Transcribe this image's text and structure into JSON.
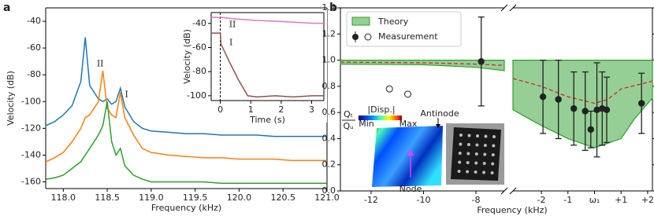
{
  "chart_data": [
    {
      "type": "line",
      "label": "a",
      "xlabel": "Frequency (kHz)",
      "ylabel": "Velocity (dB)",
      "x": [
        117.8,
        117.9,
        118.0,
        118.1,
        118.2,
        118.25,
        118.3,
        118.4,
        118.45,
        118.5,
        118.55,
        118.6,
        118.65,
        118.7,
        118.8,
        118.9,
        119.0,
        119.2,
        119.4,
        119.6,
        119.8,
        120.0,
        120.2,
        120.4,
        120.6,
        120.8,
        121.0
      ],
      "xlim": [
        117.8,
        121.0
      ],
      "xticks": [
        {
          "value": 118,
          "label": "118.0"
        },
        118.5,
        {
          "value": 119,
          "label": "119.0"
        },
        119.5,
        {
          "value": 120,
          "label": "120.0"
        },
        120.5,
        {
          "value": 121,
          "label": "121.0"
        }
      ],
      "ylim": [
        -165,
        -30
      ],
      "yticks": [
        -160,
        -140,
        -120,
        -100,
        -80,
        -60,
        -40
      ],
      "series": [
        {
          "color": "#1f77b4",
          "values": [
            -118,
            -115,
            -110,
            -103,
            -85,
            -52,
            -88,
            -98,
            -100,
            -98,
            -102,
            -100,
            -90,
            -104,
            -115,
            -120,
            -122,
            -123,
            -124,
            -124,
            -125,
            -125,
            -125,
            -126,
            -126,
            -126,
            -126
          ]
        },
        {
          "color": "#ff7f0e",
          "values": [
            -145,
            -142,
            -138,
            -130,
            -120,
            -112,
            -110,
            -100,
            -77,
            -105,
            -110,
            -112,
            -93,
            -112,
            -125,
            -135,
            -138,
            -140,
            -141,
            -142,
            -142,
            -143,
            -143,
            -143,
            -144,
            -144,
            -144
          ]
        },
        {
          "color": "#2ca02c",
          "values": [
            -158,
            -157,
            -155,
            -150,
            -145,
            -140,
            -135,
            -125,
            -118,
            -100,
            -130,
            -140,
            -135,
            -148,
            -155,
            -158,
            -160,
            -160,
            -160,
            -160,
            -161,
            -161,
            -161,
            -161,
            -161,
            -161,
            -161
          ]
        }
      ],
      "annotations": [
        {
          "text": "II",
          "x": 118.42,
          "y": -72
        },
        {
          "text": "I",
          "x": 118.72,
          "y": -95
        }
      ]
    },
    {
      "type": "line",
      "xlabel": "Time (s)",
      "ylabel": "Velocity (dB)",
      "x": [
        -0.3,
        0,
        0.02,
        0.3,
        0.6,
        0.9,
        1.2,
        1.8,
        2.4,
        3.0,
        3.4
      ],
      "xlim": [
        -0.3,
        3.4
      ],
      "xticks": [
        0,
        1,
        2,
        3
      ],
      "ylim": [
        -104,
        -31
      ],
      "yticks": [
        -100,
        -80,
        -60,
        -40
      ],
      "vline": 0,
      "series": [
        {
          "color": "#e377c2",
          "values": [
            -35,
            -35,
            -35,
            -35.8,
            -36.5,
            -37,
            -37.5,
            -38.2,
            -39,
            -39.8,
            -40
          ]
        },
        {
          "color": "#8c564b",
          "values": [
            -48,
            -48,
            -57,
            -72,
            -87,
            -100,
            -101,
            -100,
            -101,
            -100,
            -100
          ]
        }
      ],
      "annotations": [
        {
          "text": "II",
          "x": 0.4,
          "y": -41
        },
        {
          "text": "I",
          "x": 0.35,
          "y": -56
        }
      ]
    },
    {
      "type": "band",
      "label": "b",
      "ylabel_top": "Qₜ",
      "ylabel_bottom": "Qᵤ",
      "legend": "upper left",
      "xlim": [
        -13.17,
        -6.92
      ],
      "xticks": [
        -12,
        -10,
        -8
      ],
      "ylim": [
        0,
        1.4
      ],
      "yticks": [
        {
          "value": 0,
          "label": "0.0"
        },
        0.2,
        0.4,
        0.6,
        0.8,
        {
          "value": 1,
          "label": "1.0"
        },
        1.2,
        1.4
      ],
      "band": {
        "name": "Theory",
        "color": "#2ca02c",
        "x": [
          -13.17,
          -10,
          -8,
          -6.92
        ],
        "lower": [
          0.97,
          0.965,
          0.945,
          0.92
        ],
        "upper": [
          1.0,
          1.0,
          1.0,
          1.0
        ]
      },
      "line": {
        "color": "#d62728",
        "x": [
          -13.17,
          -10,
          -8,
          -6.92
        ],
        "values": [
          0.985,
          0.98,
          0.97,
          0.96
        ]
      },
      "measurements": {
        "name": "Measurement",
        "color": "#222222",
        "x": [
          -7.8
        ],
        "y": [
          0.99
        ],
        "err": [
          0.34
        ]
      },
      "open_points": {
        "x": [
          -11.3,
          -10.6
        ],
        "y": [
          0.78,
          0.74
        ]
      },
      "inset": {
        "colorbar_title": "|Disp.|",
        "min": "Min",
        "max": "Max",
        "antinode": "Antinode",
        "node": "Node"
      }
    },
    {
      "type": "band",
      "xlabel": "Frequency (kHz)",
      "xlim": [
        -3.07,
        2.18
      ],
      "xticks": [
        -2,
        -1,
        {
          "value": 0,
          "label": "ω₁"
        },
        {
          "value": 1,
          "label": "+1"
        },
        {
          "value": 2,
          "label": "+2"
        }
      ],
      "ylim": [
        0,
        1.4
      ],
      "yticks": [
        0,
        0.2,
        0.4,
        0.6,
        0.8,
        1,
        1.2,
        1.4
      ],
      "band": {
        "color": "#2ca02c",
        "x": [
          -3.07,
          -2,
          -1,
          0,
          1,
          1.5,
          2.18
        ],
        "lower": [
          0.62,
          0.5,
          0.4,
          0.33,
          0.4,
          0.55,
          0.71
        ],
        "upper": [
          1.0,
          1.0,
          1.0,
          1.0,
          1.0,
          1.0,
          1.0
        ]
      },
      "line": {
        "color": "#d62728",
        "x": [
          -3.07,
          -2,
          -1,
          0,
          0.5,
          1,
          2,
          2.18
        ],
        "values": [
          0.86,
          0.8,
          0.72,
          0.67,
          0.7,
          0.78,
          0.83,
          0.84
        ]
      },
      "measurements": {
        "color": "#222222",
        "x": [
          -1.94,
          -1.36,
          -0.78,
          -0.35,
          -0.14,
          0.09,
          0.29,
          0.46,
          1.77
        ],
        "y": [
          0.72,
          0.7,
          0.63,
          0.61,
          0.47,
          0.62,
          0.63,
          0.62,
          0.67
        ],
        "err": [
          0.28,
          0.3,
          0.28,
          0.3,
          0.14,
          0.36,
          0.28,
          0.25,
          0.23
        ]
      }
    }
  ]
}
